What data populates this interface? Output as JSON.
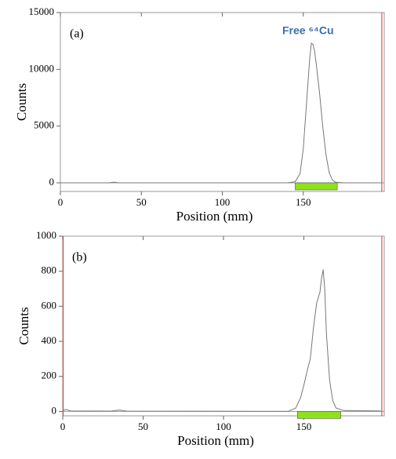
{
  "chart_data": [
    {
      "type": "line",
      "label": "(a)",
      "annotation": "Free ⁶⁴Cu",
      "x_label": "Position (mm)",
      "y_label": "Counts",
      "x": [
        0,
        30,
        33,
        36,
        140,
        145,
        148,
        150,
        152,
        154,
        155,
        156,
        157,
        158,
        160,
        162,
        164,
        166,
        168,
        170,
        175,
        198
      ],
      "values": [
        0,
        0,
        60,
        0,
        0,
        100,
        800,
        3000,
        7000,
        11000,
        12300,
        12200,
        11600,
        10500,
        8000,
        5000,
        2500,
        900,
        250,
        50,
        0,
        0
      ],
      "color": "#777777",
      "xlim": [
        0,
        200
      ],
      "xticks": [
        0,
        50,
        100,
        150
      ],
      "ylim": [
        -760,
        15000
      ],
      "yticks": [
        0,
        5000,
        10000,
        15000
      ],
      "region": {
        "start": 145,
        "end": 171,
        "color": "#8ee21a"
      },
      "markers": [
        {
          "x": 198.5,
          "color": "#d9534f"
        }
      ]
    },
    {
      "type": "line",
      "label": "(b)",
      "x_label": "Position (mm)",
      "y_label": "Counts",
      "x": [
        0,
        2,
        5,
        30,
        35,
        40,
        140,
        145,
        148,
        150,
        152,
        154,
        156,
        158,
        160,
        161,
        162,
        163,
        164,
        166,
        168,
        170,
        175,
        198
      ],
      "values": [
        5,
        12,
        3,
        2,
        8,
        2,
        0,
        20,
        80,
        150,
        230,
        300,
        480,
        620,
        680,
        760,
        810,
        700,
        450,
        180,
        60,
        20,
        5,
        3
      ],
      "color": "#777777",
      "xlim": [
        0,
        200
      ],
      "xticks": [
        0,
        50,
        100,
        150
      ],
      "ylim": [
        -25,
        1000
      ],
      "yticks": [
        0,
        200,
        400,
        600,
        800,
        1000
      ],
      "region": {
        "start": 146,
        "end": 173,
        "color": "#8ee21a"
      },
      "markers": [
        {
          "x": 0.3,
          "color": "#d9534f"
        },
        {
          "x": 198.5,
          "color": "#d9534f"
        }
      ]
    }
  ]
}
